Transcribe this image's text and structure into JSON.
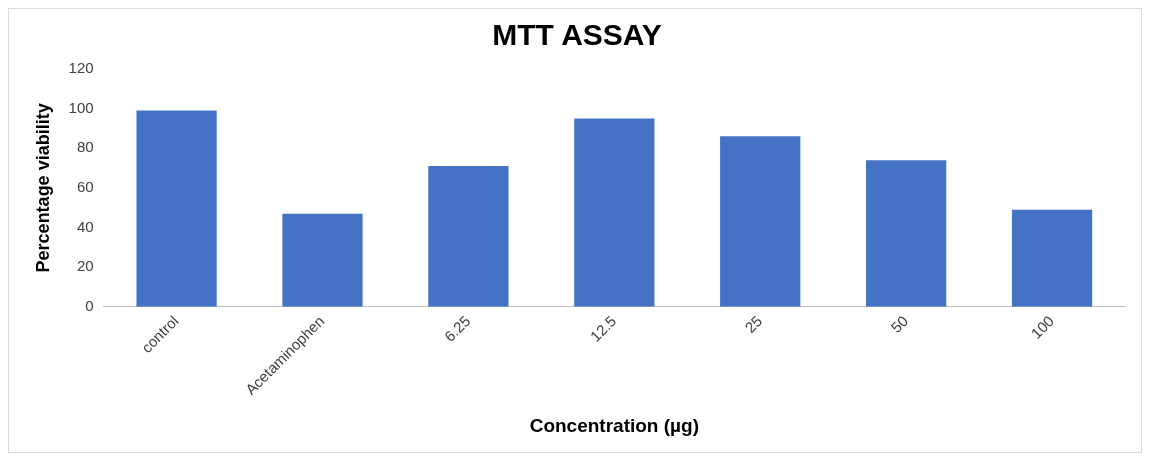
{
  "chart_data": {
    "type": "bar",
    "title": "MTT ASSAY",
    "xlabel": "Concentration (µg)",
    "ylabel": "Percentage viability",
    "categories": [
      "control",
      "Acetaminophen",
      "6.25",
      "12.5",
      "25",
      "50",
      "100"
    ],
    "values": [
      99,
      47,
      71,
      95,
      86,
      74,
      49
    ],
    "color": "#4472c4",
    "ylim": [
      0,
      120
    ],
    "yticks": [
      0,
      20,
      40,
      60,
      80,
      100,
      120
    ],
    "grid": false,
    "legend": false
  }
}
